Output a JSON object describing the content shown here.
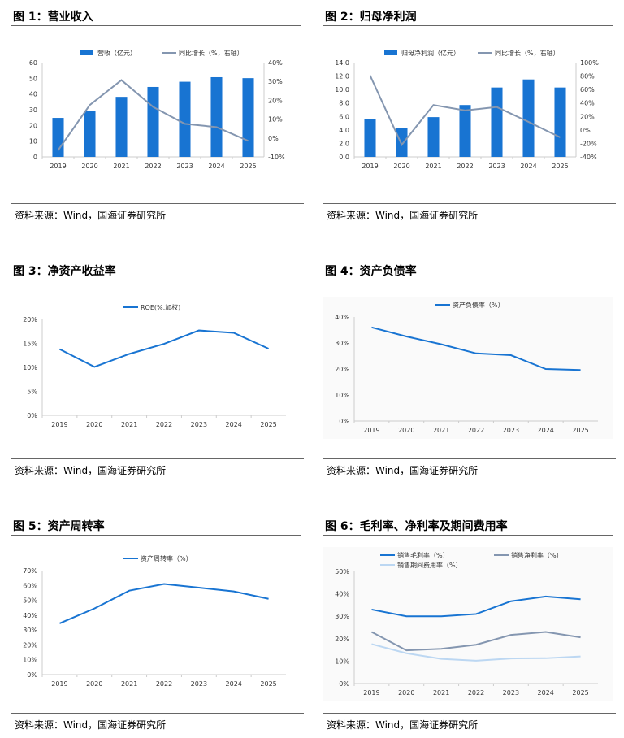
{
  "source": "资料来源：Wind，国海证券研究所",
  "chart_data": [
    {
      "type": "bar+line",
      "title": "图 1：营业收入",
      "categories": [
        "2019",
        "2020",
        "2021",
        "2022",
        "2023",
        "2024",
        "2025"
      ],
      "series": [
        {
          "name": "营收（亿元）",
          "kind": "bar",
          "axis": "left",
          "values": [
            24.8,
            29.2,
            38.2,
            44.5,
            47.8,
            50.7,
            50.1
          ],
          "color": "#1874d2"
        },
        {
          "name": "同比增长（%，右轴）",
          "kind": "line",
          "axis": "right",
          "values": [
            -6.5,
            17.5,
            30.7,
            16.5,
            7.5,
            5.8,
            -1.5
          ],
          "color": "#8496b0"
        }
      ],
      "ylim": [
        0,
        60
      ],
      "yticks": [
        "0",
        "10",
        "20",
        "30",
        "40",
        "50",
        "60"
      ],
      "y2lim": [
        -10,
        40
      ],
      "y2ticks": [
        "-10%",
        "0%",
        "10%",
        "20%",
        "30%",
        "40%"
      ]
    },
    {
      "type": "bar+line",
      "title": "图 2：归母净利润",
      "categories": [
        "2019",
        "2020",
        "2021",
        "2022",
        "2023",
        "2024",
        "2025"
      ],
      "series": [
        {
          "name": "归母净利润（亿元）",
          "kind": "bar",
          "axis": "left",
          "values": [
            5.6,
            4.3,
            5.9,
            7.7,
            10.3,
            11.5,
            10.3
          ],
          "color": "#1874d2"
        },
        {
          "name": "同比增长（%，右轴）",
          "kind": "line",
          "axis": "right",
          "values": [
            81,
            -22,
            37,
            29,
            34,
            12,
            -11
          ],
          "color": "#8496b0"
        }
      ],
      "ylim": [
        0,
        14
      ],
      "yticks": [
        "0.0",
        "2.0",
        "4.0",
        "6.0",
        "8.0",
        "10.0",
        "12.0",
        "14.0"
      ],
      "y2lim": [
        -40,
        100
      ],
      "y2ticks": [
        "-40%",
        "-20%",
        "0%",
        "20%",
        "40%",
        "60%",
        "80%",
        "100%"
      ]
    },
    {
      "type": "line",
      "title": "图 3：净资产收益率",
      "categories": [
        "2019",
        "2020",
        "2021",
        "2022",
        "2023",
        "2024",
        "2025"
      ],
      "series": [
        {
          "name": "ROE(%,加权)",
          "kind": "line",
          "axis": "left",
          "values": [
            13.8,
            10.1,
            12.8,
            14.9,
            17.7,
            17.2,
            13.9
          ],
          "color": "#1874d2"
        }
      ],
      "ylim": [
        0,
        20
      ],
      "yticks": [
        "0%",
        "5%",
        "10%",
        "15%",
        "20%"
      ]
    },
    {
      "type": "line",
      "title": "图 4：资产负债率",
      "categories": [
        "2019",
        "2020",
        "2021",
        "2022",
        "2023",
        "2024",
        "2025"
      ],
      "series": [
        {
          "name": "资产负债率（%）",
          "kind": "line",
          "axis": "left",
          "values": [
            36,
            32.5,
            29.5,
            26,
            25.3,
            20,
            19.6
          ],
          "color": "#1874d2"
        }
      ],
      "ylim": [
        0,
        40
      ],
      "yticks": [
        "0%",
        "10%",
        "20%",
        "30%",
        "40%"
      ]
    },
    {
      "type": "line",
      "title": "图 5：资产周转率",
      "categories": [
        "2019",
        "2020",
        "2021",
        "2022",
        "2023",
        "2024",
        "2025"
      ],
      "series": [
        {
          "name": "资产周转率（%）",
          "kind": "line",
          "axis": "left",
          "values": [
            34.5,
            44.5,
            56.5,
            61,
            58.5,
            56,
            51
          ],
          "color": "#1874d2"
        }
      ],
      "ylim": [
        0,
        70
      ],
      "yticks": [
        "0%",
        "10%",
        "20%",
        "30%",
        "40%",
        "50%",
        "60%",
        "70%"
      ]
    },
    {
      "type": "line",
      "title": "图 6：毛利率、净利率及期间费用率",
      "categories": [
        "2019",
        "2020",
        "2021",
        "2022",
        "2023",
        "2024",
        "2025"
      ],
      "series": [
        {
          "name": "销售毛利率（%）",
          "kind": "line",
          "axis": "left",
          "values": [
            33,
            30,
            30,
            31,
            36.7,
            38.8,
            37.6
          ],
          "color": "#1874d2"
        },
        {
          "name": "销售净利率（%）",
          "kind": "line",
          "axis": "left",
          "values": [
            23,
            14.8,
            15.5,
            17.3,
            21.7,
            23,
            20.6
          ],
          "color": "#8496b0"
        },
        {
          "name": "销售期间费用率（%）",
          "kind": "line",
          "axis": "left",
          "values": [
            17.6,
            13.5,
            11,
            10.2,
            11.2,
            11.3,
            12.1
          ],
          "color": "#bcd7f2"
        }
      ],
      "ylim": [
        0,
        50
      ],
      "yticks": [
        "0%",
        "10%",
        "20%",
        "30%",
        "40%",
        "50%"
      ]
    }
  ]
}
